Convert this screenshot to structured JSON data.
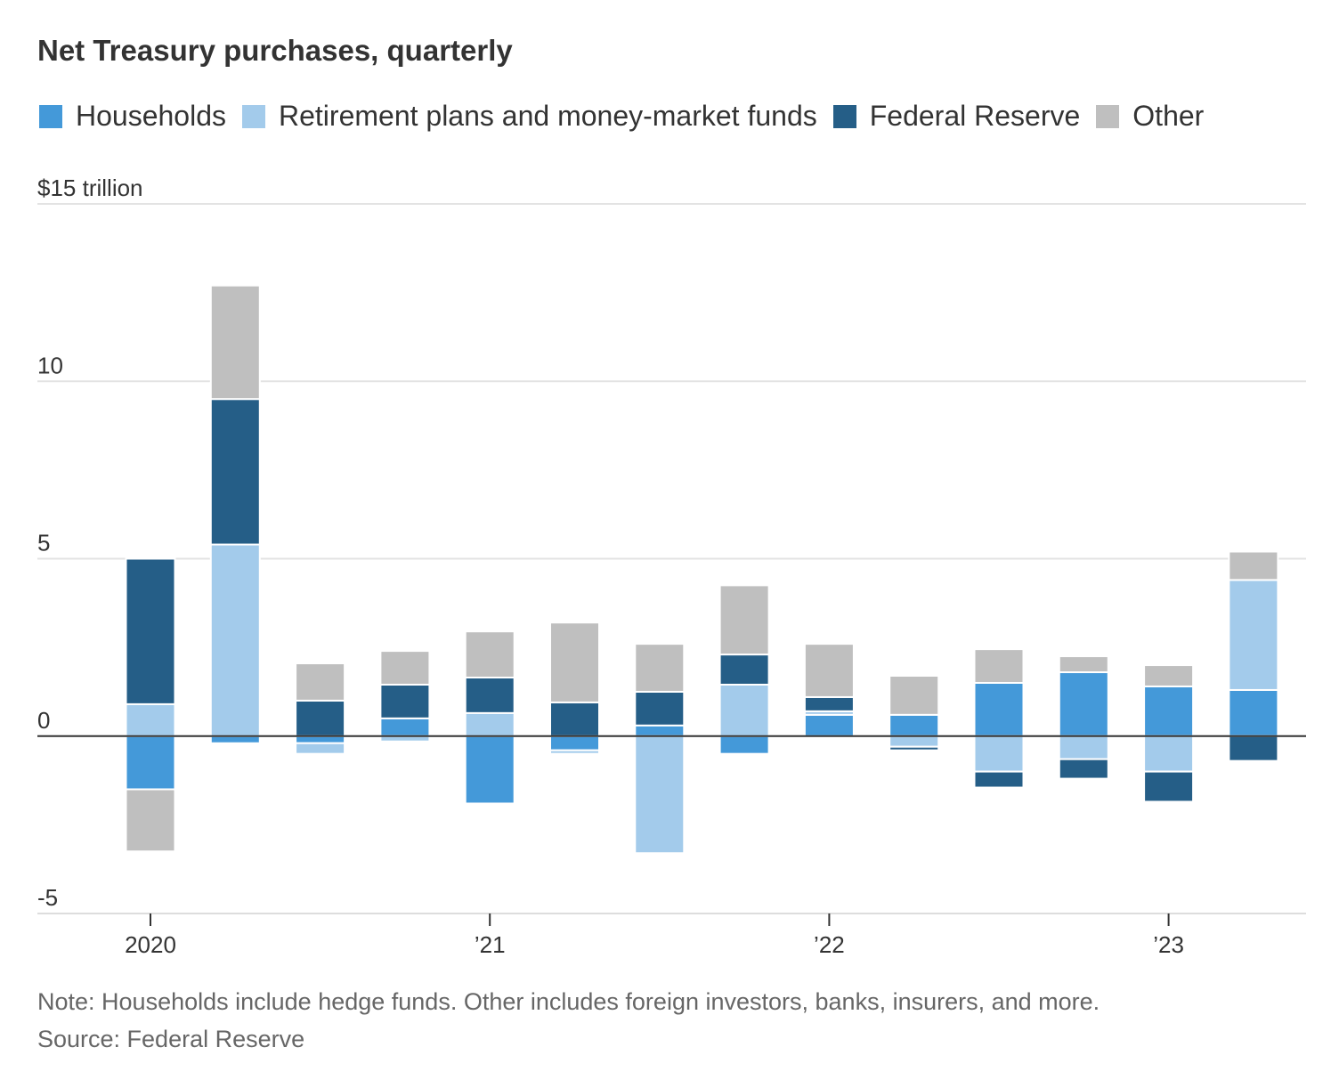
{
  "chart_data": {
    "type": "bar",
    "stacked": true,
    "title": "Net Treasury purchases, quarterly",
    "y_unit_label": "$15 trillion",
    "ylim": [
      -5,
      15
    ],
    "yticks": [
      -5,
      0,
      5,
      10,
      15
    ],
    "ytick_labels": [
      "-5",
      "0",
      "5",
      "10",
      "$15 trillion"
    ],
    "grid": true,
    "legend_position": "top",
    "x_tick_labels": [
      {
        "label": "2020",
        "quarter_index": 0
      },
      {
        "label": "’21",
        "quarter_index": 4
      },
      {
        "label": "’22",
        "quarter_index": 8
      },
      {
        "label": "’23",
        "quarter_index": 12
      }
    ],
    "categories": [
      "2020 Q1",
      "2020 Q2",
      "2020 Q3",
      "2020 Q4",
      "2021 Q1",
      "2021 Q2",
      "2021 Q3",
      "2021 Q4",
      "2022 Q1",
      "2022 Q2",
      "2022 Q3",
      "2022 Q4",
      "2023 Q1",
      "2023 Q2"
    ],
    "series": [
      {
        "name": "Households",
        "color": "#4499d9",
        "values": [
          -1.5,
          -0.2,
          -0.2,
          0.5,
          -1.9,
          -0.4,
          0.3,
          -0.5,
          0.6,
          0.6,
          1.5,
          1.8,
          1.4,
          1.3
        ]
      },
      {
        "name": "Retirement plans and money-market funds",
        "color": "#a3cbeb",
        "values": [
          0.9,
          5.4,
          -0.3,
          -0.15,
          0.65,
          -0.1,
          -3.3,
          1.45,
          0.1,
          -0.3,
          -1.0,
          -0.65,
          -1.0,
          3.1
        ]
      },
      {
        "name": "Federal Reserve",
        "color": "#255e87",
        "values": [
          4.1,
          4.1,
          1.0,
          0.95,
          1.0,
          0.95,
          0.95,
          0.85,
          0.4,
          -0.1,
          -0.45,
          -0.55,
          -0.85,
          -0.7
        ]
      },
      {
        "name": "Other",
        "color": "#bfbfbf",
        "values": [
          -1.75,
          3.2,
          1.05,
          0.95,
          1.3,
          2.25,
          1.35,
          1.95,
          1.5,
          1.1,
          0.95,
          0.45,
          0.6,
          0.8
        ]
      }
    ]
  },
  "footer": {
    "note": "Note: Households include hedge funds. Other includes foreign investors, banks, insurers, and more.",
    "source": "Source: Federal Reserve"
  }
}
